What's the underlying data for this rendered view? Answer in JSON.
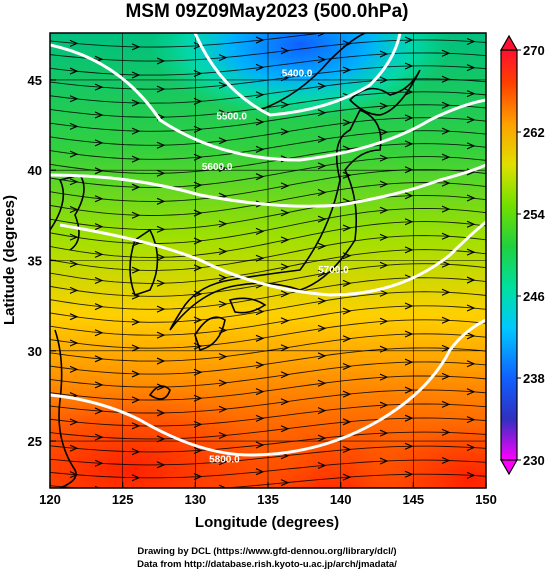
{
  "chart_data": {
    "type": "heatmap",
    "title": "MSM 09Z09May2023 (500.0hPa)",
    "xlabel": "Longitude (degrees)",
    "ylabel": "Latitude  (degrees)",
    "xlim": [
      120,
      150
    ],
    "ylim": [
      22.4,
      47.6
    ],
    "x_ticks": [
      "120",
      "125",
      "130",
      "135",
      "140",
      "145",
      "150"
    ],
    "x_tick_values": [
      120,
      125,
      130,
      135,
      140,
      145,
      150
    ],
    "y_ticks": [
      "25",
      "30",
      "35",
      "40",
      "45"
    ],
    "y_tick_values": [
      25,
      30,
      35,
      40,
      45
    ],
    "grid": true,
    "colorbar": {
      "min": 230,
      "max": 270,
      "labels": [
        "270",
        "262",
        "254",
        "246",
        "238",
        "230"
      ],
      "label_values": [
        270,
        262,
        254,
        246,
        238,
        230
      ],
      "colors": [
        "#ff00ff",
        "#2020d0",
        "#0090ff",
        "#00e0e0",
        "#00d060",
        "#30d030",
        "#c0e000",
        "#ffe000",
        "#ff9000",
        "#ff3000",
        "#ff0030"
      ],
      "extend": "both"
    },
    "contours": [
      {
        "label": "5400.0",
        "lon": 137,
        "lat": 45.2
      },
      {
        "label": "5500.0",
        "lon": 132.5,
        "lat": 42.8
      },
      {
        "label": "5600.0",
        "lon": 131.5,
        "lat": 40.0
      },
      {
        "label": "5700.0",
        "lon": 139.5,
        "lat": 34.3
      },
      {
        "label": "5800.0",
        "lon": 132,
        "lat": 23.8
      }
    ],
    "field_description_values": {
      "cold_center": {
        "lon": 134,
        "lat": 47,
        "value": 241
      },
      "warm_region": {
        "lon": 125,
        "lat": 24,
        "value": 266
      }
    }
  },
  "credits": {
    "line1": "Drawing by DCL (https://www.gfd-dennou.org/library/dcl/)",
    "line2": "Data from http://database.rish.kyoto-u.ac.jp/arch/jmadata/"
  }
}
